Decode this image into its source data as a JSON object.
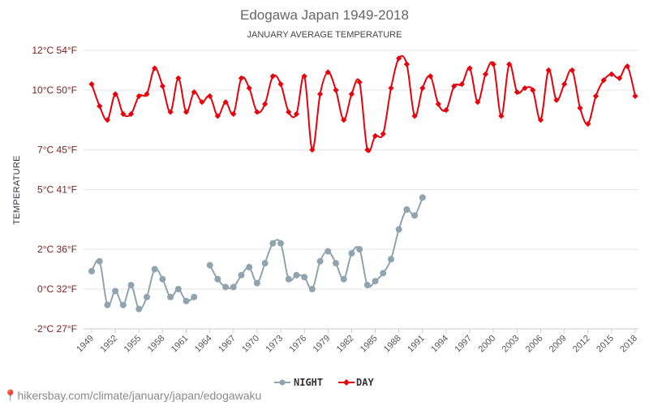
{
  "chart_data": {
    "type": "line",
    "title": "Edogawa Japan 1949-2018",
    "subtitle": "JANUARY AVERAGE TEMPERATURE",
    "ylabel": "TEMPERATURE",
    "ylim": [
      -2.5,
      12.5
    ],
    "xlim": [
      1949,
      2018
    ],
    "grid": true,
    "legend_position": "bottom",
    "y_ticks": [
      {
        "value": -2,
        "label": "-2°C 27°F"
      },
      {
        "value": 0,
        "label": "0°C 32°F"
      },
      {
        "value": 2,
        "label": "2°C 36°F"
      },
      {
        "value": 5,
        "label": "5°C 41°F"
      },
      {
        "value": 7,
        "label": "7°C 45°F"
      },
      {
        "value": 10,
        "label": "10°C 50°F"
      },
      {
        "value": 12,
        "label": "12°C 54°F"
      }
    ],
    "x_ticks": [
      1949,
      1952,
      1955,
      1958,
      1961,
      1964,
      1967,
      1970,
      1973,
      1976,
      1979,
      1982,
      1985,
      1988,
      1991,
      1994,
      1997,
      2000,
      2003,
      2006,
      2009,
      2012,
      2015,
      2018
    ],
    "series": [
      {
        "name": "NIGHT",
        "color": "#90a4ae",
        "marker": "circle",
        "points": [
          [
            1949,
            0.9
          ],
          [
            1950,
            1.4
          ],
          [
            1951,
            -0.8
          ],
          [
            1952,
            -0.1
          ],
          [
            1953,
            -0.8
          ],
          [
            1954,
            0.2
          ],
          [
            1955,
            -1.0
          ],
          [
            1956,
            -0.4
          ],
          [
            1957,
            1.0
          ],
          [
            1958,
            0.5
          ],
          [
            1959,
            -0.4
          ],
          [
            1960,
            0.0
          ],
          [
            1961,
            -0.6
          ],
          [
            1962,
            -0.4
          ],
          [
            1964,
            1.2
          ],
          [
            1965,
            0.5
          ],
          [
            1966,
            0.1
          ],
          [
            1967,
            0.1
          ],
          [
            1968,
            0.7
          ],
          [
            1969,
            1.1
          ],
          [
            1970,
            0.3
          ],
          [
            1971,
            1.3
          ],
          [
            1972,
            2.3
          ],
          [
            1973,
            2.3
          ],
          [
            1974,
            0.5
          ],
          [
            1975,
            0.7
          ],
          [
            1976,
            0.6
          ],
          [
            1977,
            0.0
          ],
          [
            1978,
            1.4
          ],
          [
            1979,
            1.9
          ],
          [
            1980,
            1.3
          ],
          [
            1981,
            0.5
          ],
          [
            1982,
            1.8
          ],
          [
            1983,
            2.0
          ],
          [
            1984,
            0.2
          ],
          [
            1985,
            0.4
          ],
          [
            1986,
            0.8
          ],
          [
            1987,
            1.5
          ],
          [
            1988,
            3.0
          ],
          [
            1989,
            4.0
          ],
          [
            1990,
            3.7
          ],
          [
            1991,
            4.6
          ]
        ]
      },
      {
        "name": "DAY",
        "color": "#e8000b",
        "marker": "diamond",
        "points": [
          [
            1949,
            10.3
          ],
          [
            1950,
            9.2
          ],
          [
            1951,
            8.5
          ],
          [
            1952,
            9.8
          ],
          [
            1953,
            8.8
          ],
          [
            1954,
            8.8
          ],
          [
            1955,
            9.7
          ],
          [
            1956,
            9.8
          ],
          [
            1957,
            11.1
          ],
          [
            1958,
            10.2
          ],
          [
            1959,
            8.9
          ],
          [
            1960,
            10.6
          ],
          [
            1961,
            8.9
          ],
          [
            1962,
            9.9
          ],
          [
            1963,
            9.4
          ],
          [
            1964,
            9.7
          ],
          [
            1965,
            8.7
          ],
          [
            1966,
            9.4
          ],
          [
            1967,
            8.8
          ],
          [
            1968,
            10.6
          ],
          [
            1969,
            10.1
          ],
          [
            1970,
            8.9
          ],
          [
            1971,
            9.3
          ],
          [
            1972,
            10.7
          ],
          [
            1973,
            10.3
          ],
          [
            1974,
            8.9
          ],
          [
            1975,
            8.8
          ],
          [
            1976,
            10.7
          ],
          [
            1977,
            7.0
          ],
          [
            1978,
            9.8
          ],
          [
            1979,
            10.9
          ],
          [
            1980,
            10.0
          ],
          [
            1981,
            8.5
          ],
          [
            1982,
            9.8
          ],
          [
            1983,
            10.4
          ],
          [
            1984,
            7.0
          ],
          [
            1985,
            7.7
          ],
          [
            1986,
            7.8
          ],
          [
            1987,
            10.1
          ],
          [
            1988,
            11.6
          ],
          [
            1989,
            11.3
          ],
          [
            1990,
            8.7
          ],
          [
            1991,
            10.1
          ],
          [
            1992,
            10.7
          ],
          [
            1993,
            9.3
          ],
          [
            1994,
            9.0
          ],
          [
            1995,
            10.2
          ],
          [
            1996,
            10.3
          ],
          [
            1997,
            11.1
          ],
          [
            1998,
            9.4
          ],
          [
            1999,
            10.8
          ],
          [
            2000,
            11.3
          ],
          [
            2001,
            8.7
          ],
          [
            2002,
            11.3
          ],
          [
            2003,
            9.9
          ],
          [
            2004,
            10.1
          ],
          [
            2005,
            10.0
          ],
          [
            2006,
            8.5
          ],
          [
            2007,
            11.0
          ],
          [
            2008,
            9.5
          ],
          [
            2009,
            10.3
          ],
          [
            2010,
            11.0
          ],
          [
            2011,
            9.1
          ],
          [
            2012,
            8.3
          ],
          [
            2013,
            9.7
          ],
          [
            2014,
            10.5
          ],
          [
            2015,
            10.8
          ],
          [
            2016,
            10.6
          ],
          [
            2017,
            11.2
          ],
          [
            2018,
            9.7
          ]
        ]
      }
    ]
  },
  "legend": {
    "night_label": "NIGHT",
    "day_label": "DAY"
  },
  "footer": {
    "url": "hikersbay.com/climate/january/japan/edogawaku"
  }
}
